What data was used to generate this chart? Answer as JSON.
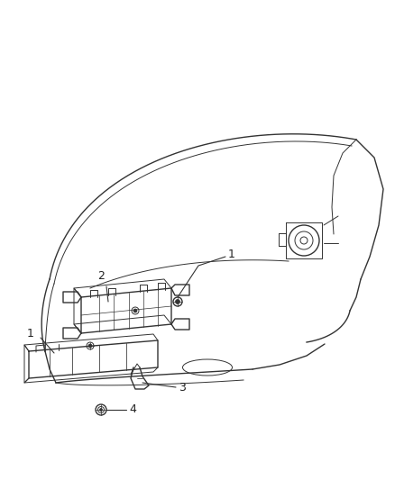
{
  "background_color": "#ffffff",
  "line_color": "#333333",
  "label_color": "#222222",
  "fig_width": 4.38,
  "fig_height": 5.33,
  "dpi": 100
}
